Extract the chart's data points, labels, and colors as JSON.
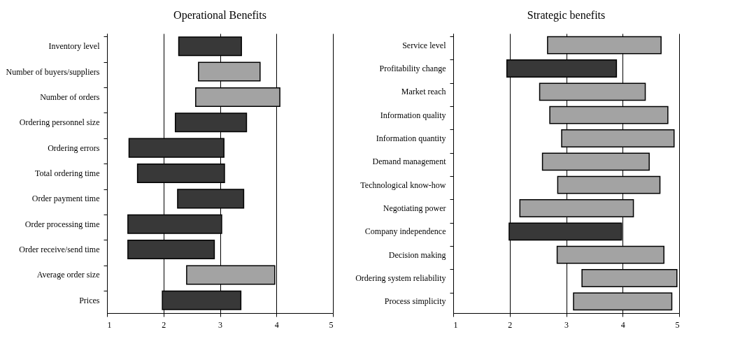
{
  "chart_data": [
    {
      "type": "bar",
      "title": "Operational Benefits",
      "orientation": "horizontal",
      "grid": "x",
      "categories": [
        "Inventory level",
        "Number of buyers/suppliers",
        "Number of orders",
        "Ordering personnel size",
        "Ordering errors",
        "Total ordering time",
        "Order payment time",
        "Order processing time",
        "Order receive/send time",
        "Average order size",
        "Prices"
      ],
      "base": [
        2.27,
        2.62,
        2.57,
        2.21,
        1.39,
        1.54,
        2.25,
        1.37,
        1.37,
        2.41,
        1.98
      ],
      "values": [
        1.11,
        1.09,
        1.49,
        1.26,
        1.68,
        1.54,
        1.17,
        1.66,
        1.53,
        1.56,
        1.39
      ],
      "colors": [
        "#383838",
        "#a3a3a3",
        "#a3a3a3",
        "#383838",
        "#383838",
        "#383838",
        "#383838",
        "#383838",
        "#383838",
        "#a3a3a3",
        "#383838"
      ],
      "xlim": [
        1,
        5
      ],
      "xticks": [
        1,
        2,
        3,
        4,
        5
      ]
    },
    {
      "type": "bar",
      "title": "Strategic benefits",
      "orientation": "horizontal",
      "grid": "x",
      "categories": [
        "Service level",
        "Profitability change",
        "Market reach",
        "Information quality",
        "Information quantity",
        "Demand management",
        "Technological know-how",
        "Negotiating power",
        "Company independence",
        "Decision making",
        "Ordering system reliability",
        "Process simplicity"
      ],
      "base": [
        2.67,
        1.95,
        2.53,
        2.71,
        2.92,
        2.58,
        2.85,
        2.18,
        1.99,
        2.84,
        3.28,
        3.13
      ],
      "values": [
        2.01,
        1.94,
        1.87,
        2.09,
        1.99,
        1.89,
        1.81,
        2.01,
        1.99,
        1.89,
        1.68,
        1.74
      ],
      "colors": [
        "#a3a3a3",
        "#383838",
        "#a3a3a3",
        "#a3a3a3",
        "#a3a3a3",
        "#a3a3a3",
        "#a3a3a3",
        "#a3a3a3",
        "#383838",
        "#a3a3a3",
        "#a3a3a3",
        "#a3a3a3"
      ],
      "xlim": [
        1,
        5
      ],
      "xticks": [
        1,
        2,
        3,
        4,
        5
      ]
    }
  ]
}
